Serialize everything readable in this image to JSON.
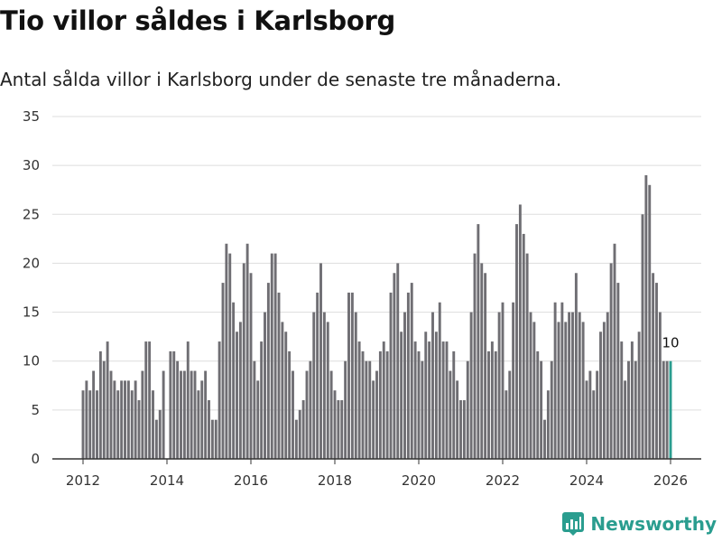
{
  "title": "Tio villor såldes i Karlsborg",
  "subtitle": "Antal sålda villor i Karlsborg under de senaste tre månaderna.",
  "brand": "Newsworthy",
  "colors": {
    "bar": "#6f6e73",
    "highlight": "#2a9d8f",
    "grid": "#dddddd",
    "axis": "#333333"
  },
  "chart_data": {
    "type": "bar",
    "x_unit": "month",
    "start": "2012-01",
    "end": "2026-01",
    "xticks": [
      2012,
      2014,
      2016,
      2018,
      2020,
      2022,
      2024,
      2026
    ],
    "yticks": [
      0,
      5,
      10,
      15,
      20,
      25,
      30,
      35
    ],
    "ylim": [
      0,
      35
    ],
    "values": [
      7,
      8,
      7,
      9,
      7,
      11,
      10,
      12,
      9,
      8,
      7,
      8,
      8,
      8,
      7,
      8,
      6,
      9,
      12,
      12,
      7,
      4,
      5,
      9,
      0,
      11,
      11,
      10,
      9,
      9,
      12,
      9,
      9,
      7,
      8,
      9,
      6,
      4,
      4,
      12,
      18,
      22,
      21,
      16,
      13,
      14,
      20,
      22,
      19,
      10,
      8,
      12,
      15,
      18,
      21,
      21,
      17,
      14,
      13,
      11,
      9,
      4,
      5,
      6,
      9,
      10,
      15,
      17,
      20,
      15,
      14,
      9,
      7,
      6,
      6,
      10,
      17,
      17,
      15,
      12,
      11,
      10,
      10,
      8,
      9,
      11,
      12,
      11,
      17,
      19,
      20,
      13,
      15,
      17,
      18,
      12,
      11,
      10,
      13,
      12,
      15,
      13,
      16,
      12,
      12,
      9,
      11,
      8,
      6,
      6,
      10,
      15,
      21,
      24,
      20,
      19,
      11,
      12,
      11,
      15,
      16,
      7,
      9,
      16,
      24,
      26,
      23,
      21,
      15,
      14,
      11,
      10,
      4,
      7,
      10,
      16,
      14,
      16,
      14,
      15,
      15,
      19,
      15,
      14,
      8,
      9,
      7,
      9,
      13,
      14,
      15,
      20,
      22,
      18,
      12,
      8,
      10,
      12,
      10,
      13,
      25,
      29,
      28,
      19,
      18,
      15,
      10,
      10,
      10
    ],
    "highlight_index": 168,
    "highlight_label": "10"
  }
}
